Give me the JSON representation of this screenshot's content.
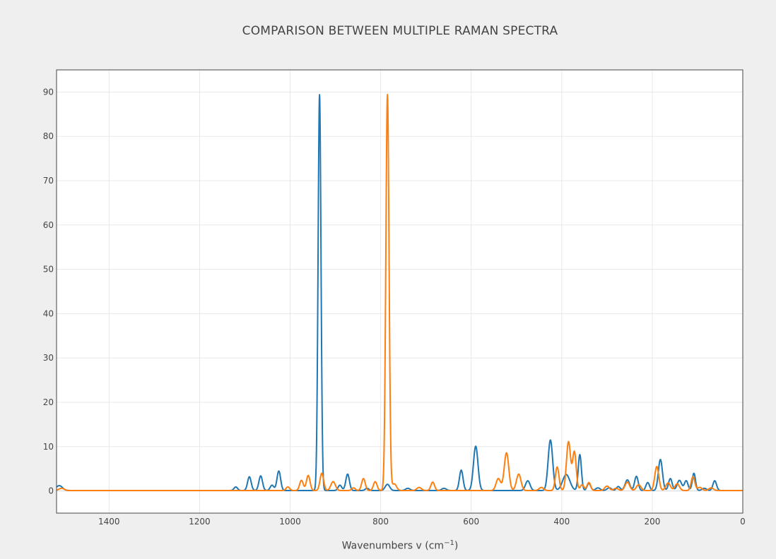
{
  "chart_data": {
    "type": "line",
    "title": "COMPARISON BETWEEN MULTIPLE RAMAN SPECTRA",
    "xlabel_main": "Wavenumbers v (cm",
    "xlabel_sup": "−1",
    "xlabel_end": ")",
    "ylabel": "",
    "xlim": [
      1516,
      0
    ],
    "ylim": [
      -5,
      95
    ],
    "x_reversed": true,
    "grid": true,
    "legend": "none",
    "x_ticks": [
      1400,
      1200,
      1000,
      800,
      600,
      400,
      200,
      0
    ],
    "y_ticks": [
      0,
      10,
      20,
      30,
      40,
      50,
      60,
      70,
      80,
      90
    ],
    "series": [
      {
        "color": "#1f77b4",
        "baseline": 0.1,
        "peaks": [
          [
            1510,
            1.1,
            7
          ],
          [
            1120,
            0.8,
            4
          ],
          [
            1090,
            3.1,
            4
          ],
          [
            1065,
            3.3,
            4
          ],
          [
            1040,
            1.2,
            4
          ],
          [
            1025,
            4.4,
            4
          ],
          [
            935,
            89.3,
            3.2
          ],
          [
            890,
            1.2,
            4
          ],
          [
            873,
            3.7,
            4
          ],
          [
            830,
            0.5,
            4
          ],
          [
            785,
            1.4,
            5
          ],
          [
            740,
            0.5,
            5
          ],
          [
            660,
            0.5,
            5
          ],
          [
            622,
            4.6,
            4
          ],
          [
            590,
            10.0,
            5
          ],
          [
            475,
            2.2,
            5
          ],
          [
            425,
            11.4,
            5
          ],
          [
            390,
            3.6,
            8
          ],
          [
            360,
            8.1,
            3.5
          ],
          [
            340,
            1.6,
            4
          ],
          [
            320,
            0.6,
            5
          ],
          [
            295,
            0.6,
            5
          ],
          [
            275,
            0.9,
            4
          ],
          [
            255,
            2.4,
            5
          ],
          [
            235,
            3.2,
            4
          ],
          [
            210,
            1.8,
            4
          ],
          [
            182,
            7.0,
            4.5
          ],
          [
            160,
            2.7,
            4
          ],
          [
            140,
            2.3,
            5
          ],
          [
            125,
            2.2,
            4
          ],
          [
            108,
            3.9,
            3.5
          ],
          [
            85,
            0.5,
            5
          ],
          [
            62,
            2.2,
            4
          ]
        ]
      },
      {
        "color": "#ff7f0e",
        "baseline": 0.1,
        "peaks": [
          [
            1505,
            0.5,
            6
          ],
          [
            1005,
            0.8,
            4
          ],
          [
            975,
            2.3,
            4
          ],
          [
            960,
            3.4,
            4
          ],
          [
            930,
            3.9,
            4
          ],
          [
            905,
            2.0,
            5
          ],
          [
            860,
            0.6,
            4
          ],
          [
            838,
            2.7,
            4
          ],
          [
            812,
            2.0,
            4
          ],
          [
            785,
            89.3,
            3.5
          ],
          [
            770,
            1.5,
            5
          ],
          [
            715,
            0.7,
            5
          ],
          [
            685,
            1.9,
            4
          ],
          [
            540,
            2.7,
            5
          ],
          [
            522,
            8.5,
            5
          ],
          [
            495,
            3.7,
            5
          ],
          [
            445,
            0.7,
            5
          ],
          [
            410,
            5.3,
            4
          ],
          [
            385,
            11.0,
            4.5
          ],
          [
            372,
            8.7,
            4
          ],
          [
            355,
            1.3,
            4
          ],
          [
            340,
            1.8,
            4
          ],
          [
            300,
            1.0,
            5
          ],
          [
            280,
            0.5,
            5
          ],
          [
            255,
            1.9,
            5
          ],
          [
            230,
            1.3,
            5
          ],
          [
            190,
            5.4,
            4.5
          ],
          [
            165,
            1.7,
            5
          ],
          [
            145,
            1.5,
            5
          ],
          [
            110,
            3.1,
            4
          ],
          [
            95,
            0.7,
            5
          ],
          [
            70,
            0.6,
            5
          ]
        ]
      }
    ]
  }
}
